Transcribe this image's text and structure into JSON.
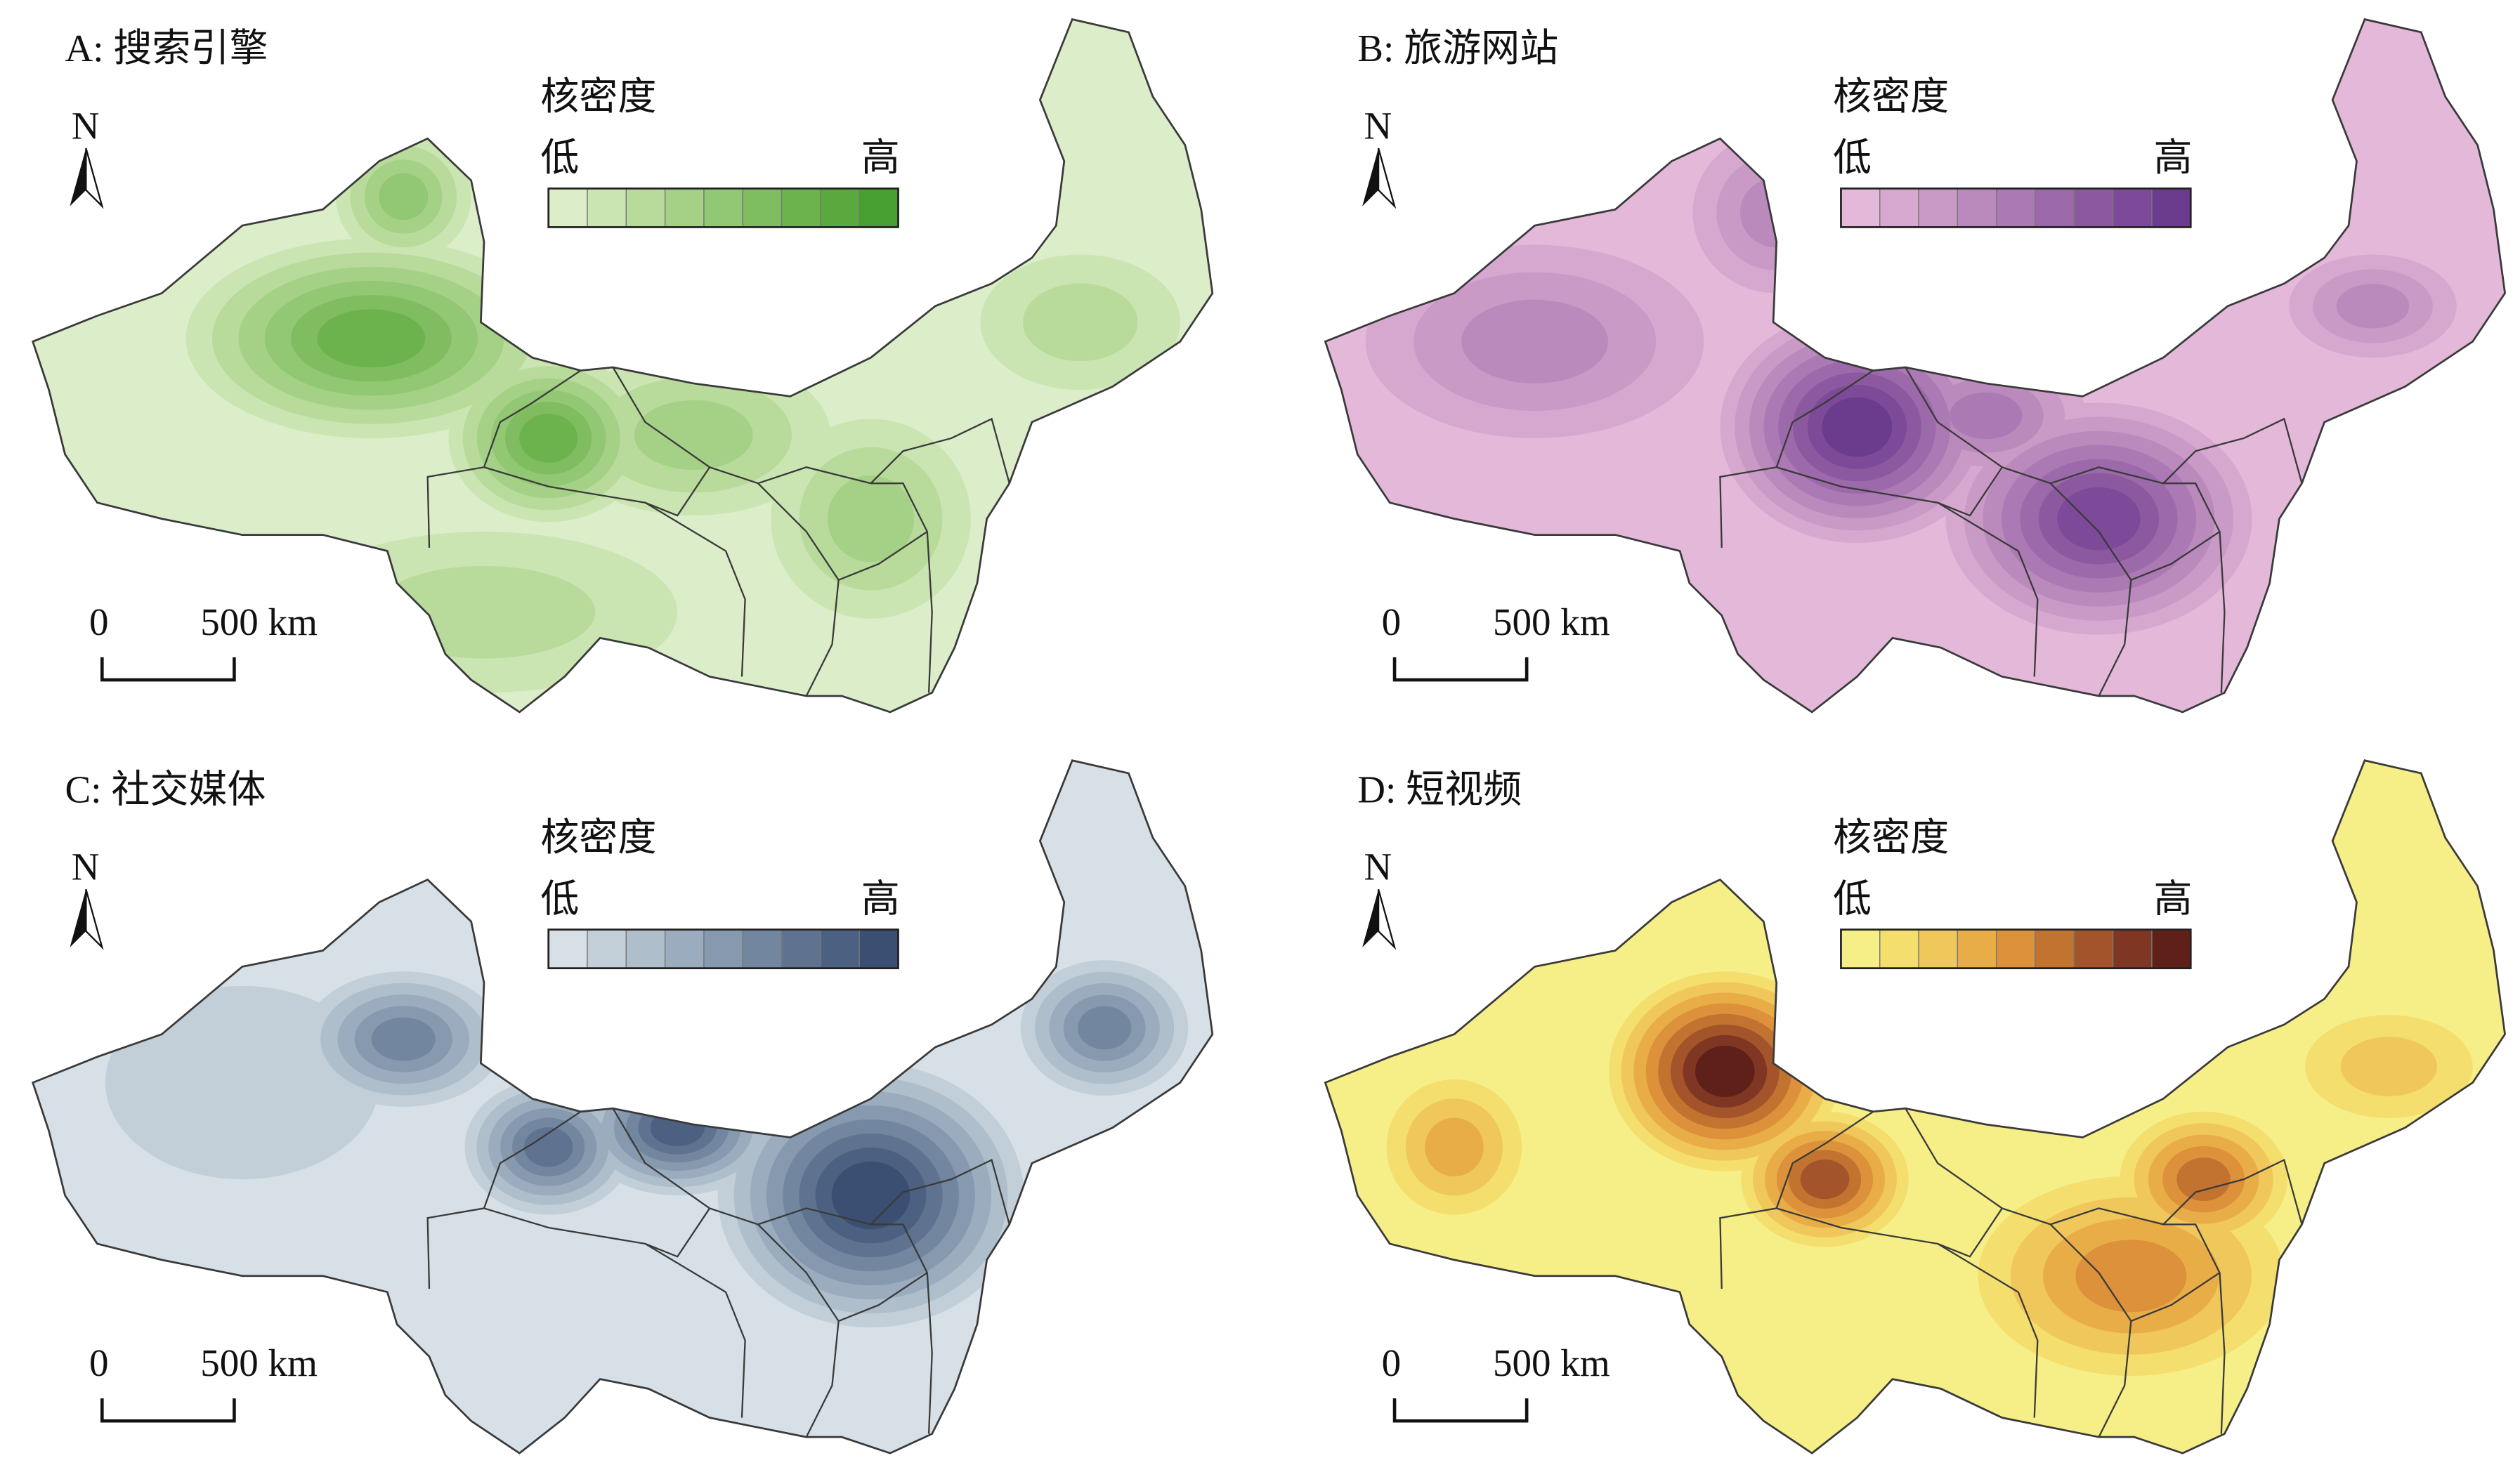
{
  "panels": [
    {
      "title": "A: 搜索引擎",
      "legend_title": "核密度",
      "low": "低",
      "high": "高",
      "north": "N",
      "scale_zero": "0",
      "scale_label": "500 km",
      "colors": [
        "#dcedc9",
        "#cae5b2",
        "#b8db9c",
        "#a5d187",
        "#92c773",
        "#7fbd60",
        "#6cb34e",
        "#59a93e",
        "#47a030"
      ]
    },
    {
      "title": "B: 旅游网站",
      "legend_title": "核密度",
      "low": "低",
      "high": "高",
      "north": "N",
      "scale_zero": "0",
      "scale_label": "500 km",
      "colors": [
        "#e3b8d9",
        "#d6a8cf",
        "#c99ac6",
        "#ba8abd",
        "#ab79b4",
        "#9c69ab",
        "#8c59a1",
        "#7c4a98",
        "#6b3c8e"
      ]
    },
    {
      "title": "C: 社交媒体",
      "legend_title": "核密度",
      "low": "低",
      "high": "高",
      "north": "N",
      "scale_zero": "0",
      "scale_label": "500 km",
      "colors": [
        "#d6e0e6",
        "#c3cfd8",
        "#aebecb",
        "#9aacbd",
        "#8699ae",
        "#72869f",
        "#5f7390",
        "#4c6181",
        "#3a4f72"
      ]
    },
    {
      "title": "D: 短视频",
      "legend_title": "核密度",
      "low": "低",
      "high": "高",
      "north": "N",
      "scale_zero": "0",
      "scale_label": "500 km",
      "colors": [
        "#f6ef88",
        "#f4de6e",
        "#f0c75b",
        "#e9ad48",
        "#dc913a",
        "#c27330",
        "#a3542a",
        "#7f3723",
        "#5e2019"
      ]
    }
  ]
}
